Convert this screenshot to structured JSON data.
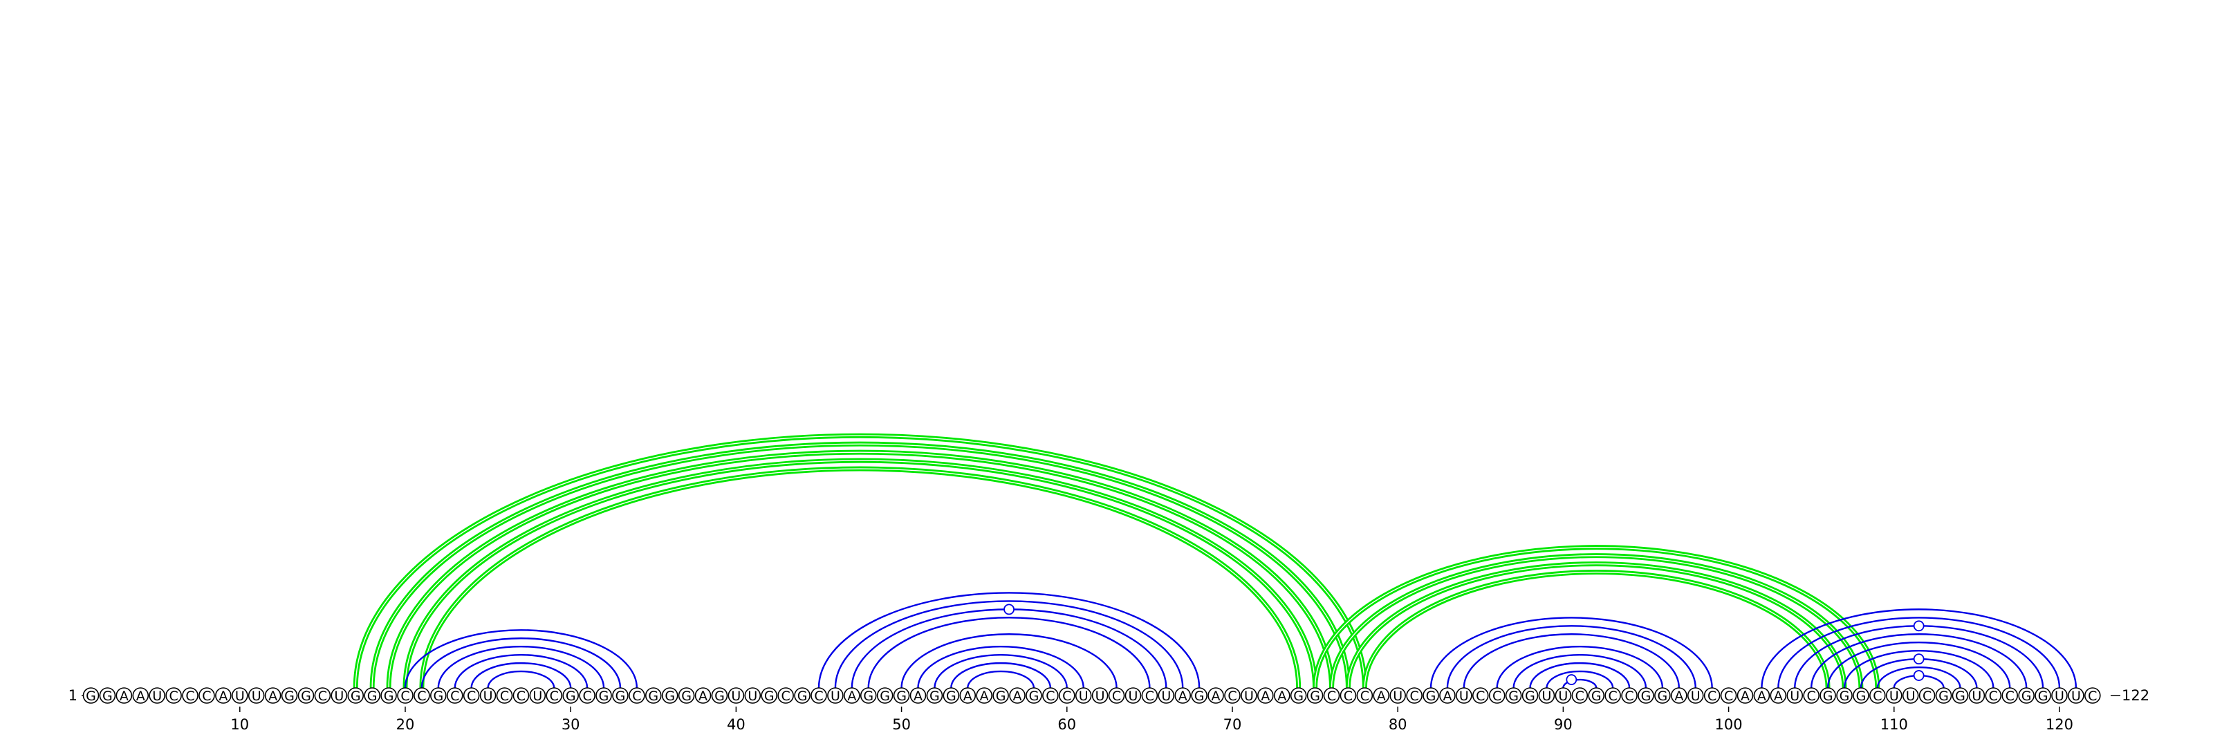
{
  "sequence": "GGAAUCCCAUUAGGCUGGGCCGCCUCCUCGCGGCGGGAGUUGCGCUAGGGAGGAAGAGCCUUCUCUAGACUAAGGCCCAUCGAUCCGGUUCGCCGGAUCCAAAUCGGGCUUCGGUCCGGUUC",
  "start_label": "1",
  "end_label": "122",
  "ticks": [
    10,
    20,
    30,
    40,
    50,
    60,
    70,
    80,
    90,
    100,
    110,
    120
  ],
  "colors": {
    "blue_arcs": "#0000e6",
    "green_arcs": "#00e600",
    "nucleotide_outline": "#000000"
  },
  "pairs_blue": [
    [
      20,
      34
    ],
    [
      21,
      33
    ],
    [
      22,
      32
    ],
    [
      23,
      31
    ],
    [
      24,
      30
    ],
    [
      25,
      29
    ],
    [
      45,
      68
    ],
    [
      46,
      67
    ],
    [
      47,
      66
    ],
    [
      48,
      65
    ],
    [
      50,
      63
    ],
    [
      51,
      61
    ],
    [
      52,
      60
    ],
    [
      53,
      59
    ],
    [
      54,
      58
    ],
    [
      82,
      99
    ],
    [
      83,
      98
    ],
    [
      84,
      97
    ],
    [
      86,
      96
    ],
    [
      87,
      95
    ],
    [
      88,
      94
    ],
    [
      89,
      93
    ],
    [
      90,
      92
    ],
    [
      102,
      121
    ],
    [
      103,
      120
    ],
    [
      104,
      119
    ],
    [
      105,
      118
    ],
    [
      106,
      117
    ],
    [
      107,
      116
    ],
    [
      108,
      115
    ],
    [
      109,
      114
    ],
    [
      110,
      113
    ]
  ],
  "pairs_green": [
    [
      17,
      78
    ],
    [
      18,
      77
    ],
    [
      19,
      76
    ],
    [
      20,
      75
    ],
    [
      21,
      74
    ],
    [
      75,
      109
    ],
    [
      76,
      108
    ],
    [
      77,
      107
    ],
    [
      78,
      106
    ]
  ],
  "pk_markers": [
    {
      "x": 56.5,
      "under_pair": [
        47,
        66
      ]
    },
    {
      "x": 90.5,
      "under_pair": [
        90,
        92
      ]
    },
    {
      "x": 111.5,
      "under_pair": [
        104,
        119
      ]
    },
    {
      "x": 111.5,
      "under_pair": [
        108,
        115
      ]
    },
    {
      "x": 111.5,
      "under_pair": [
        110,
        113
      ]
    }
  ]
}
